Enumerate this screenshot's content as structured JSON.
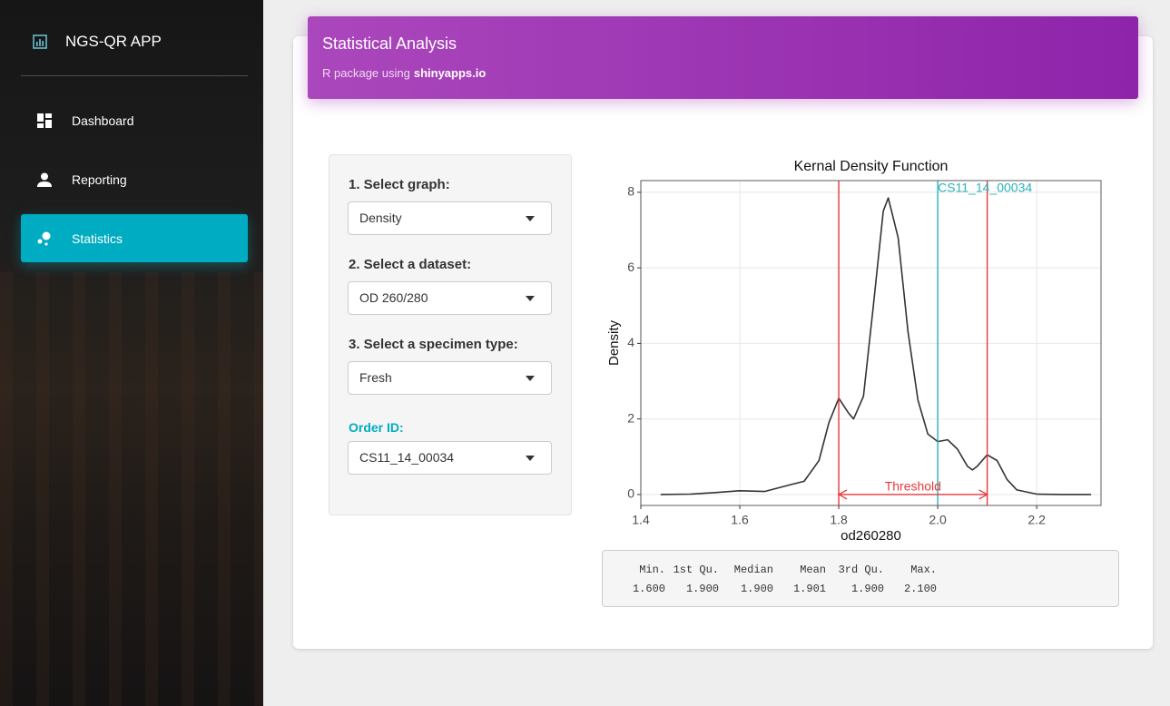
{
  "sidebar": {
    "brand": "NGS-QR APP",
    "nav": [
      "Dashboard",
      "Reporting",
      "Statistics"
    ],
    "active": 2
  },
  "header": {
    "title": "Statistical Analysis",
    "subtitle": "R package using",
    "subtitle_link": "shinyapps.io"
  },
  "form": {
    "fields": [
      {
        "label": "1. Select graph:",
        "value": "Density"
      },
      {
        "label": "2. Select a dataset:",
        "value": "OD 260/280"
      },
      {
        "label": "3. Select a specimen type:",
        "value": "Fresh"
      },
      {
        "label": "Order ID:",
        "value": "CS11_14_00034"
      }
    ]
  },
  "chart_data": {
    "type": "line",
    "title": "Kernal Density Function",
    "x_label": "od260280",
    "y_label": "Density",
    "x": [
      1.44,
      1.5,
      1.55,
      1.6,
      1.65,
      1.7,
      1.73,
      1.76,
      1.78,
      1.8,
      1.82,
      1.83,
      1.85,
      1.87,
      1.89,
      1.9,
      1.92,
      1.94,
      1.96,
      1.98,
      2.0,
      2.02,
      2.04,
      2.06,
      2.07,
      2.08,
      2.1,
      2.12,
      2.14,
      2.16,
      2.2,
      2.25,
      2.31
    ],
    "series": [
      {
        "color": "#333333",
        "values": [
          0,
          0.01,
          0.05,
          0.1,
          0.08,
          0.25,
          0.35,
          0.9,
          1.9,
          2.55,
          2.15,
          2.0,
          2.6,
          5.0,
          7.5,
          7.85,
          6.8,
          4.3,
          2.5,
          1.6,
          1.4,
          1.45,
          1.2,
          0.75,
          0.65,
          0.75,
          1.05,
          0.9,
          0.4,
          0.12,
          0.01,
          0,
          0
        ]
      }
    ],
    "xlim": [
      1.4,
      2.33
    ],
    "ylim": [
      -0.29,
      8.31
    ],
    "xticks": [
      1.4,
      1.6,
      1.8,
      {
        "value": 2,
        "label": "2.0"
      },
      2.2
    ],
    "yticks": [
      0,
      2,
      4,
      6,
      8
    ],
    "grid": true,
    "vlines": [
      {
        "x": 1.8,
        "color": "#e8383d"
      },
      {
        "x": 2.1,
        "color": "#e8383d"
      },
      {
        "x": 2,
        "color": "#2ab3b8",
        "label": "CS11_14_00034"
      }
    ],
    "threshold": {
      "label": "Threshold",
      "from": 1.8,
      "to": 2.1,
      "y": 0,
      "color": "#e8383d"
    }
  },
  "summary": {
    "headers": [
      "Min.",
      "1st Qu.",
      "Median",
      "Mean",
      "3rd Qu.",
      "Max."
    ],
    "values": [
      "1.600",
      "1.900",
      "1.900",
      "1.901",
      "1.900",
      "2.100"
    ]
  }
}
